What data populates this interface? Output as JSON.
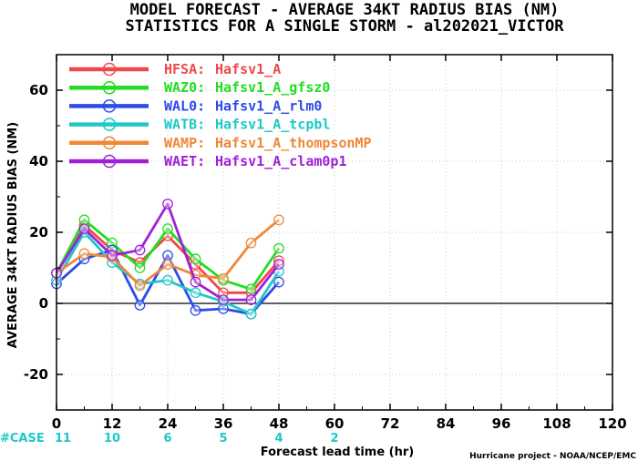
{
  "chart_data": {
    "type": "line",
    "title": "MODEL FORECAST - AVERAGE 34KT RADIUS BIAS (NM)",
    "subtitle": "STATISTICS FOR A SINGLE STORM - al202021_VICTOR",
    "xlabel": "Forecast lead time (hr)",
    "ylabel": "AVERAGE 34KT RADIUS BIAS (NM)",
    "xlim": [
      0,
      120
    ],
    "ylim": [
      -30,
      70
    ],
    "x_ticks": [
      "0",
      "12",
      "24",
      "36",
      "48",
      "60",
      "72",
      "84",
      "96",
      "108",
      "120"
    ],
    "y_ticks": [
      "-20",
      "0",
      "20",
      "40",
      "60"
    ],
    "grid": true,
    "legend_position": "top-left",
    "x": [
      0,
      6,
      12,
      18,
      24,
      30,
      36,
      42,
      48
    ],
    "series": [
      {
        "name": "HFSA:",
        "desc": "Hafsv1_A",
        "color": "#f04848",
        "values": [
          8.5,
          22,
          15,
          11.5,
          19,
          11,
          3,
          3,
          12
        ]
      },
      {
        "name": "WAZ0:",
        "desc": "Hafsv1_A_gfsz0",
        "color": "#22dd22",
        "values": [
          8.5,
          23.5,
          17,
          10,
          21,
          12.5,
          6.5,
          4,
          15.5
        ]
      },
      {
        "name": "WAL0:",
        "desc": "Hafsv1_A_rlm0",
        "color": "#2c4ce6",
        "values": [
          5.5,
          12.5,
          15,
          -0.5,
          13.5,
          -2,
          -1.5,
          -3,
          6
        ]
      },
      {
        "name": "WATB:",
        "desc": "Hafsv1_A_tcpbl",
        "color": "#1ec8c8",
        "values": [
          6.5,
          20,
          11.5,
          5.5,
          6.5,
          3,
          0.5,
          -3,
          9
        ]
      },
      {
        "name": "WAMP:",
        "desc": "Hafsv1_A_thompsonMP",
        "color": "#ee8838",
        "values": [
          8.5,
          14,
          13,
          5,
          11,
          8,
          7,
          17,
          23.5
        ]
      },
      {
        "name": "WAET:",
        "desc": "Hafsv1_A_clam0p1",
        "color": "#a020d8",
        "values": [
          8.5,
          21,
          13.5,
          15,
          28,
          6,
          1,
          1,
          11
        ]
      }
    ],
    "case_label": "#CASE",
    "case_counts": [
      {
        "x": 0,
        "n": "11"
      },
      {
        "x": 12,
        "n": "10"
      },
      {
        "x": 24,
        "n": "6"
      },
      {
        "x": 36,
        "n": "5"
      },
      {
        "x": 48,
        "n": "4"
      },
      {
        "x": 60,
        "n": "2"
      }
    ],
    "colors": {
      "case_text": "#1ec8c8",
      "zero_line": "#000000",
      "grid": "#c8c8c8"
    }
  },
  "credit": "Hurricane project - NOAA/NCEP/EMC"
}
